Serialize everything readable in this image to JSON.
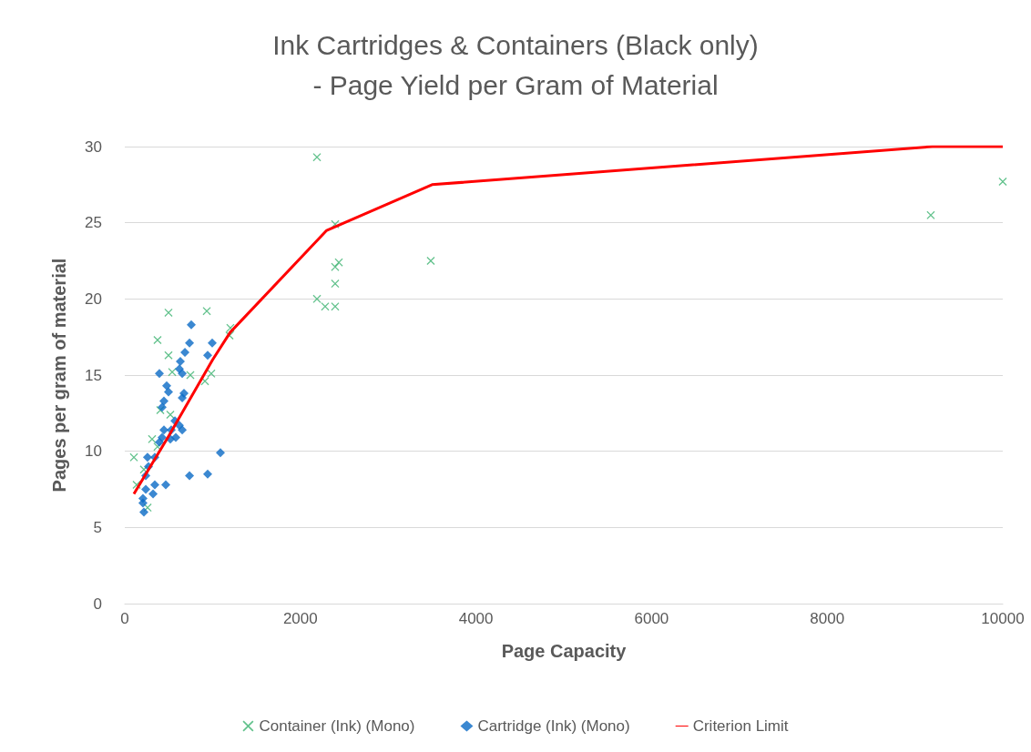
{
  "chart_data": {
    "type": "scatter",
    "title": "Ink Cartridges & Containers (Black only)\n- Page Yield per Gram of Material",
    "xlabel": "Page Capacity",
    "ylabel": "Pages per gram of material",
    "xlim": [
      0,
      10000
    ],
    "xticks": [
      0,
      2000,
      4000,
      6000,
      8000,
      10000
    ],
    "ylim": [
      0,
      30
    ],
    "yticks": [
      0,
      5,
      10,
      15,
      20,
      25,
      30
    ],
    "grid": "y",
    "legend": "bottom",
    "series": [
      {
        "name": "Container (Ink) (Mono)",
        "color": "#3cb371",
        "marker": "cross",
        "x": [
          104,
          218,
          135,
          260,
          373,
          498,
          934,
          498,
          540,
          747,
          913,
          985,
          1203,
          1193,
          405,
          519,
          311,
          373,
          2189,
          2396,
          2438,
          2396,
          2396,
          2189,
          2282,
          2396,
          3485,
          9180,
          10000
        ],
        "values": [
          9.6,
          8.8,
          7.8,
          6.3,
          17.3,
          19.1,
          19.2,
          16.3,
          15.2,
          15.0,
          14.6,
          15.1,
          18.1,
          17.6,
          12.7,
          12.4,
          10.8,
          10.3,
          29.3,
          24.9,
          22.4,
          22.1,
          21.0,
          20.0,
          19.5,
          19.5,
          22.5,
          25.5,
          27.7
        ]
      },
      {
        "name": "Cartridge (Ink) (Mono)",
        "color": "#0a6ac6",
        "marker": "diamond",
        "x": [
          757,
          737,
          996,
          685,
          944,
          633,
          622,
          394,
          654,
          477,
          498,
          674,
          654,
          446,
          425,
          571,
          622,
          446,
          529,
          654,
          425,
          519,
          581,
          394,
          1089,
          342,
          259,
          270,
          239,
          944,
          737,
          467,
          342,
          239,
          322,
          207,
          207,
          218
        ],
        "values": [
          18.3,
          17.1,
          17.1,
          16.5,
          16.3,
          15.9,
          15.4,
          15.1,
          15.1,
          14.3,
          13.9,
          13.8,
          13.5,
          13.3,
          12.9,
          12.0,
          11.7,
          11.4,
          11.4,
          11.4,
          10.9,
          10.8,
          10.9,
          10.6,
          9.9,
          9.6,
          9.6,
          9.0,
          8.4,
          8.5,
          8.4,
          7.8,
          7.8,
          7.5,
          7.2,
          6.9,
          6.6,
          6.0
        ]
      },
      {
        "name": "Criterion Limit",
        "type": "line",
        "color": "#ff0000",
        "marker": "none",
        "x": [
          104,
          500,
          1000,
          1200,
          2300,
          3500,
          9200,
          10000
        ],
        "values": [
          7.2,
          11,
          16,
          17.8,
          24.5,
          27.5,
          30,
          30
        ]
      }
    ]
  }
}
